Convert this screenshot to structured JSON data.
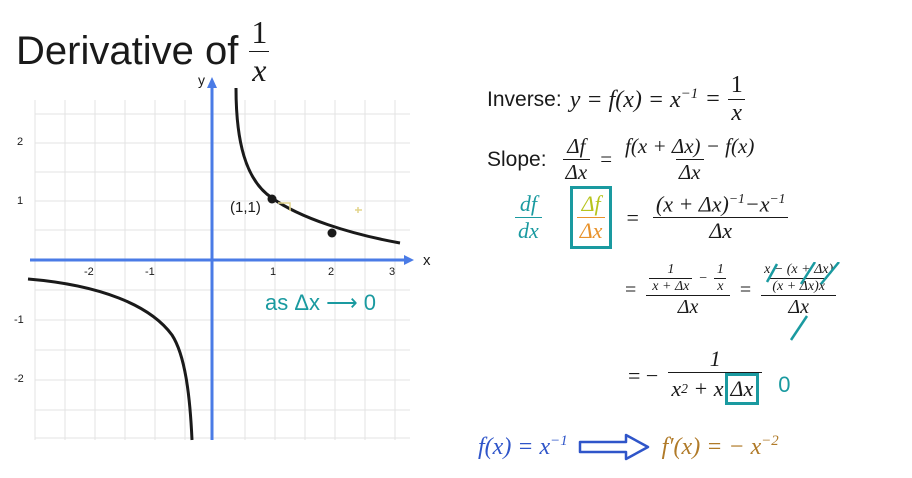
{
  "title": {
    "prefix": "Derivative of",
    "frac_num": "1",
    "frac_den": "x"
  },
  "graph": {
    "x_axis_label": "x",
    "y_axis_label": "y",
    "x_ticks": [
      "-2",
      "-1",
      "1",
      "2",
      "3"
    ],
    "y_ticks": [
      "2",
      "1",
      "-1",
      "-2"
    ],
    "point_label": "(1,1)",
    "limit_note": "as Δx ⟶ 0",
    "colors": {
      "curve": "#1a1a1a",
      "axes": "#4a7be6",
      "grid": "#e3e3e3",
      "note": "#1a9aa0"
    }
  },
  "math": {
    "inverse": {
      "label": "Inverse:",
      "expr": "y = f(x) = x",
      "exp": "−1",
      "eq": "=",
      "num": "1",
      "den": "x"
    },
    "slope": {
      "label": "Slope:",
      "lhs_num": "Δf",
      "lhs_den": "Δx",
      "eq": "=",
      "rhs_num": "f(x + Δx) − f(x)",
      "rhs_den": "Δx"
    },
    "deriv": {
      "df": "df",
      "dx": "dx",
      "box_num": "Δf",
      "box_den": "Δx",
      "eq": "=",
      "rhs_num_a": "(x + Δx)",
      "rhs_num_exp": "−1",
      "rhs_num_b": "−x",
      "rhs_num_exp2": "−1",
      "rhs_den": "Δx"
    },
    "step2": {
      "eq": "=",
      "inner_num1": "1",
      "inner_den1": "x + Δx",
      "minus": "−",
      "inner_num2": "1",
      "inner_den2": "x",
      "outer_den": "Δx",
      "eq2": "=",
      "right_num": "x − (x + Δx)",
      "right_den_inner": "(x + Δx)x",
      "right_den": "Δx"
    },
    "step3": {
      "eq": "= −",
      "num": "1",
      "den_a": "x",
      "den_sup": "2",
      "den_b": " + x",
      "den_box": "Δx",
      "arrow_zero": "0"
    },
    "result": {
      "lhs": "f(x) = x",
      "lhs_exp": "−1",
      "rhs": "f′(x) = − x",
      "rhs_exp": "−2"
    }
  }
}
